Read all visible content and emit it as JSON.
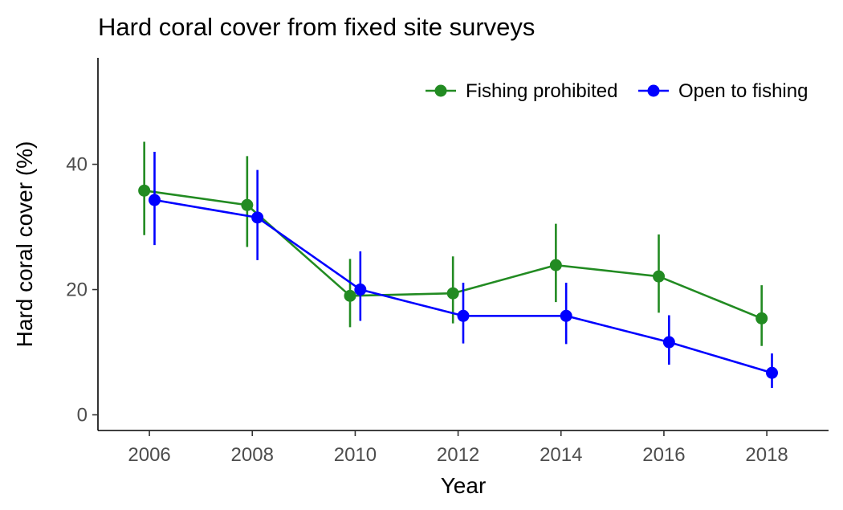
{
  "chart_data": {
    "type": "line",
    "title": "Hard coral cover from fixed site surveys",
    "xlabel": "Year",
    "ylabel": "Hard coral cover (%)",
    "xlim": [
      2005,
      2019.2
    ],
    "ylim": [
      -2.5,
      57
    ],
    "x_ticks": [
      "2006",
      "2008",
      "2010",
      "2012",
      "2014",
      "2016",
      "2018"
    ],
    "y_ticks": [
      "0",
      "20",
      "40"
    ],
    "legend_position": "top-right",
    "grid": false,
    "series": [
      {
        "name": "Fishing prohibited",
        "color": "#228B22",
        "dodge": -0.1,
        "x": [
          2006,
          2008,
          2010,
          2012,
          2014,
          2016,
          2018
        ],
        "y": [
          35.8,
          33.5,
          19.0,
          19.4,
          23.9,
          22.1,
          15.4
        ],
        "err_low": [
          28.7,
          26.8,
          14.0,
          14.6,
          18.0,
          16.3,
          11.0
        ],
        "err_high": [
          43.6,
          41.3,
          24.9,
          25.3,
          30.5,
          28.8,
          20.7
        ]
      },
      {
        "name": "Open to fishing",
        "color": "#0000FF",
        "dodge": 0.1,
        "x": [
          2006,
          2008,
          2010,
          2012,
          2014,
          2016,
          2018
        ],
        "y": [
          34.3,
          31.5,
          20.0,
          15.8,
          15.8,
          11.6,
          6.7
        ],
        "err_low": [
          27.1,
          24.7,
          15.0,
          11.4,
          11.3,
          8.0,
          4.3
        ],
        "err_high": [
          42.0,
          39.1,
          26.1,
          21.1,
          21.1,
          15.9,
          9.8
        ]
      }
    ]
  }
}
